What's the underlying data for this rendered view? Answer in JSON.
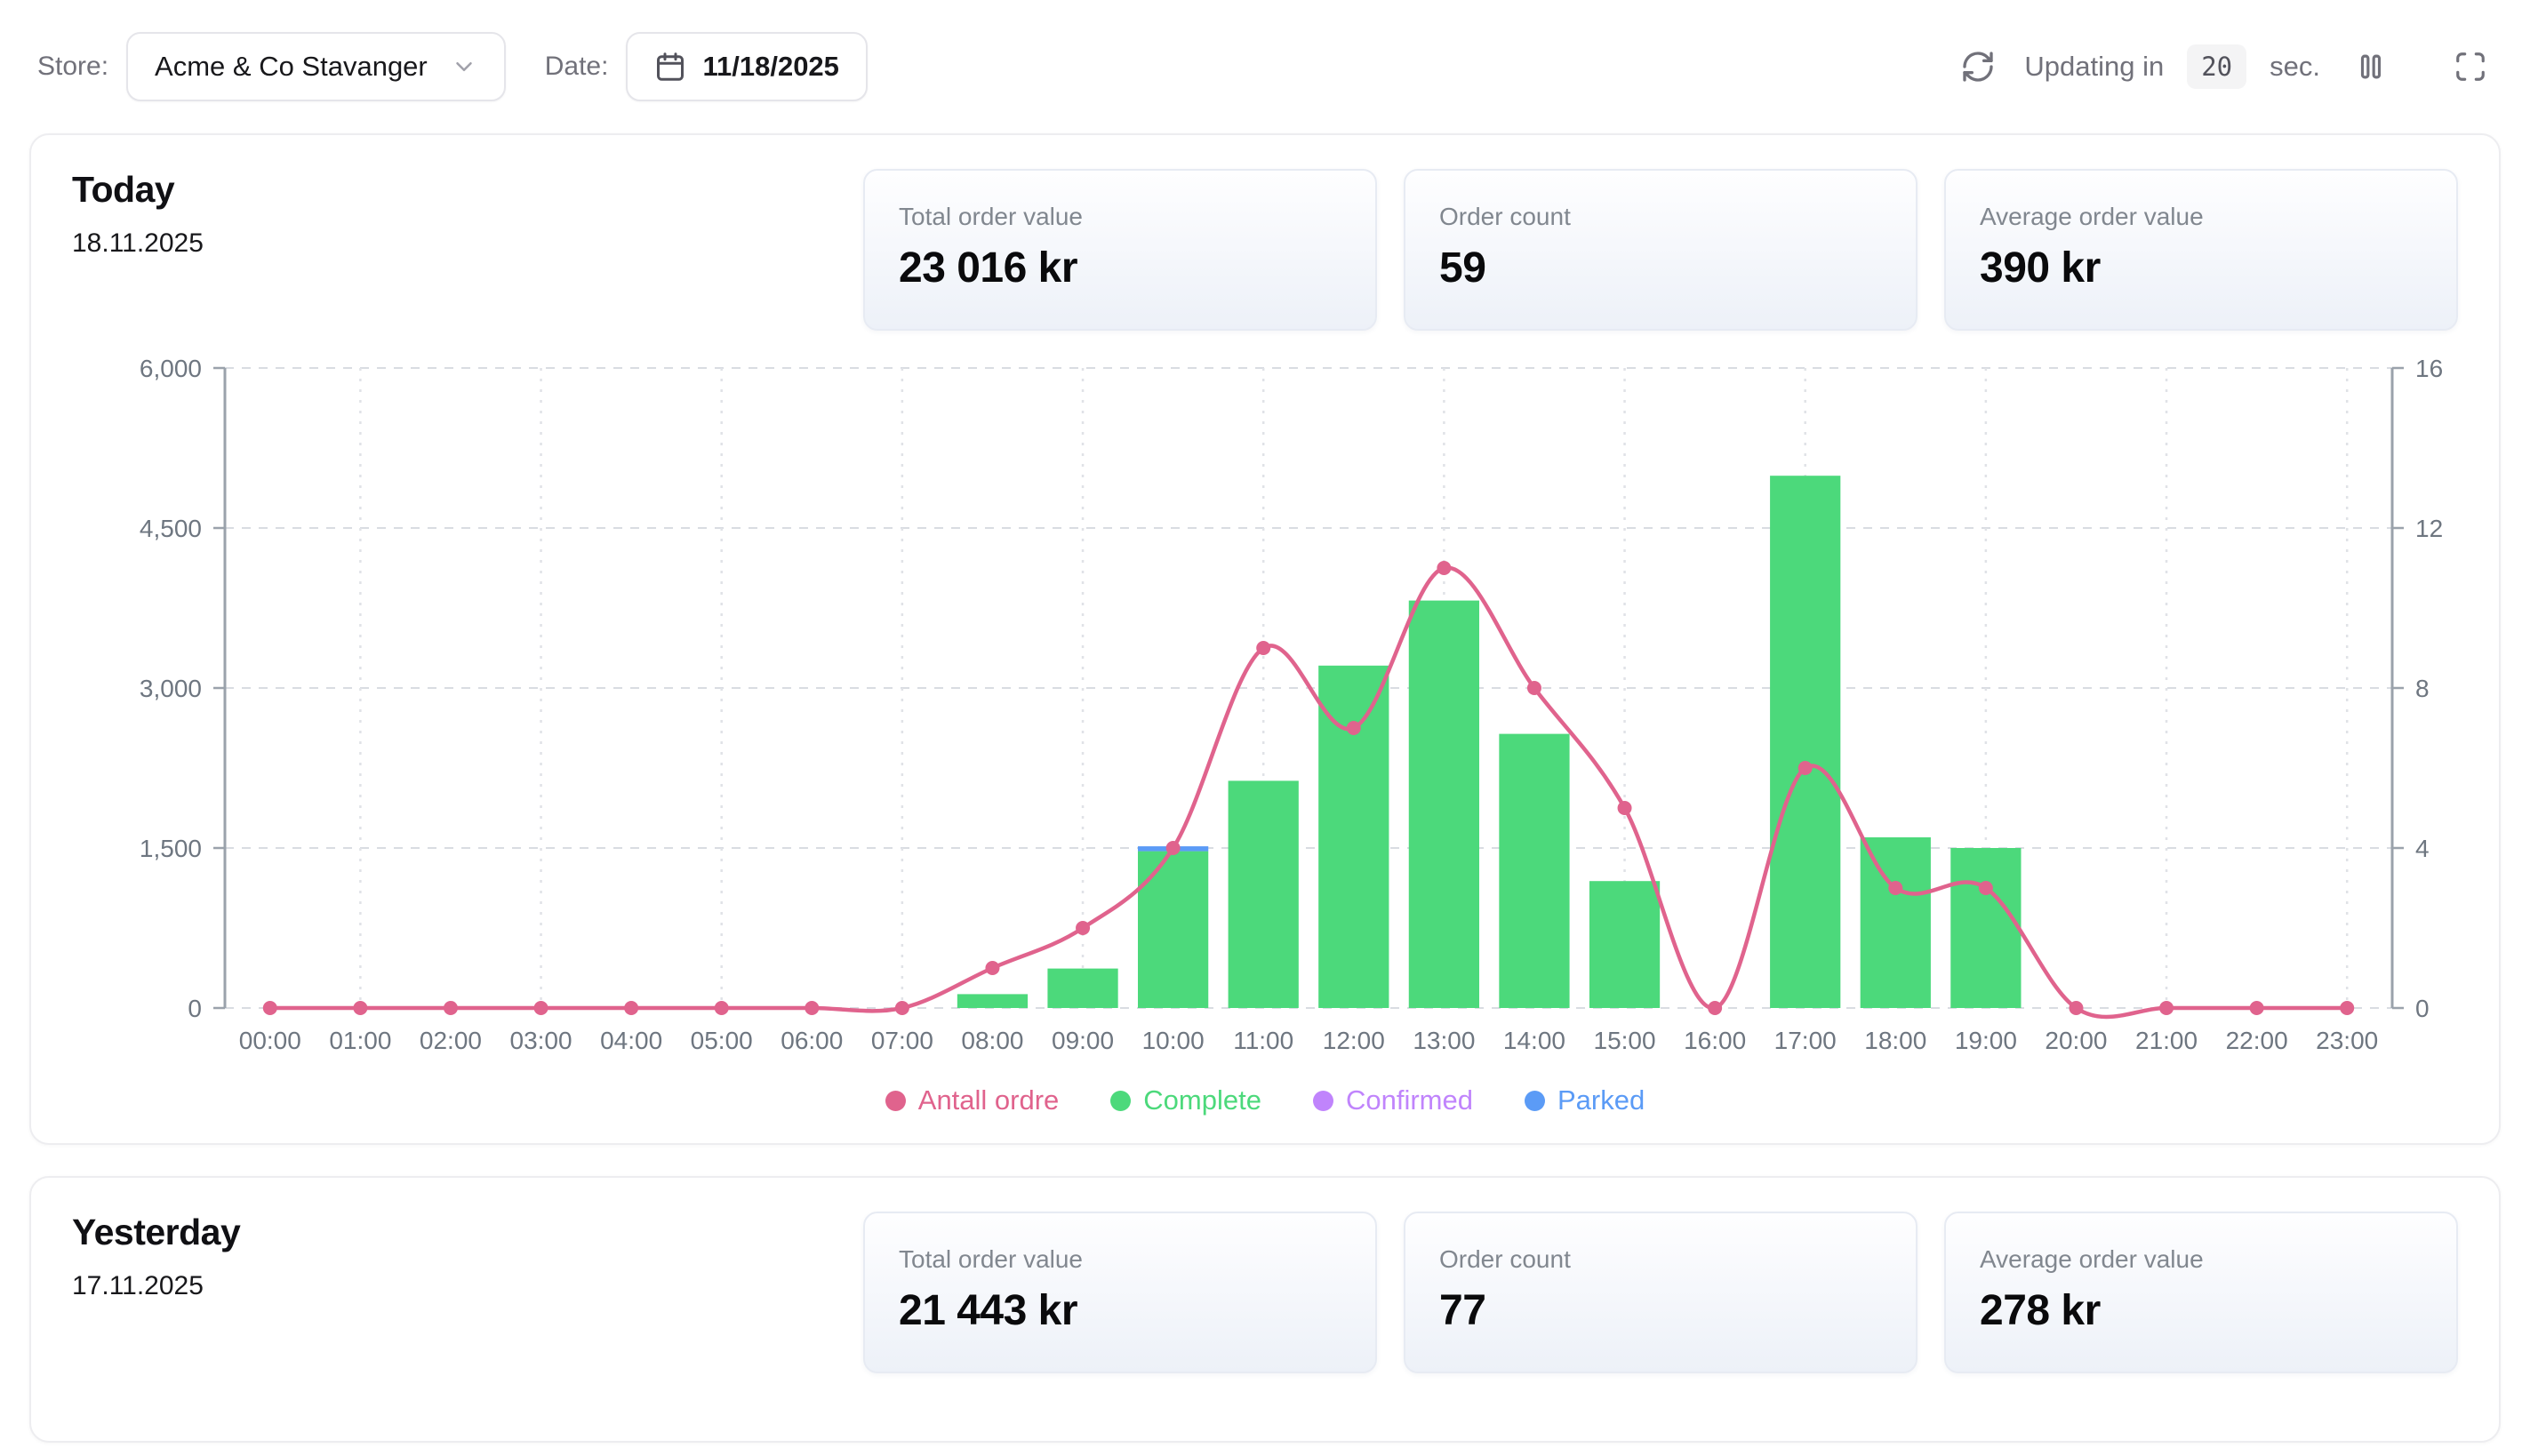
{
  "toolbar": {
    "store_label": "Store:",
    "store_value": "Acme & Co Stavanger",
    "date_label": "Date:",
    "date_value": "11/18/2025",
    "updating_prefix": "Updating in",
    "updating_seconds": "20",
    "updating_suffix": "sec."
  },
  "today": {
    "title": "Today",
    "date": "18.11.2025",
    "stats": [
      {
        "label": "Total order value",
        "value": "23 016 kr"
      },
      {
        "label": "Order count",
        "value": "59"
      },
      {
        "label": "Average order value",
        "value": "390 kr"
      }
    ]
  },
  "yesterday": {
    "title": "Yesterday",
    "date": "17.11.2025",
    "stats": [
      {
        "label": "Total order value",
        "value": "21 443 kr"
      },
      {
        "label": "Order count",
        "value": "77"
      },
      {
        "label": "Average order value",
        "value": "278 kr"
      }
    ]
  },
  "chart_data": {
    "type": "bar",
    "title": "",
    "categories": [
      "00:00",
      "01:00",
      "02:00",
      "03:00",
      "04:00",
      "05:00",
      "06:00",
      "07:00",
      "08:00",
      "09:00",
      "10:00",
      "11:00",
      "12:00",
      "13:00",
      "14:00",
      "15:00",
      "16:00",
      "17:00",
      "18:00",
      "19:00",
      "20:00",
      "21:00",
      "22:00",
      "23:00"
    ],
    "series": [
      {
        "name": "Antall ordre",
        "type": "line",
        "axis": "right",
        "color": "#e0638d",
        "values": [
          0,
          0,
          0,
          0,
          0,
          0,
          0,
          0,
          1,
          2,
          4,
          9,
          7,
          11,
          8,
          5,
          0,
          6,
          3,
          3,
          0,
          0,
          0,
          0
        ]
      },
      {
        "name": "Complete",
        "type": "bar",
        "axis": "left",
        "color": "#4cd97b",
        "values": [
          0,
          0,
          0,
          0,
          0,
          0,
          0,
          0,
          130,
          370,
          1470,
          2130,
          3210,
          3820,
          2570,
          1190,
          0,
          4990,
          1600,
          1500,
          0,
          0,
          0,
          0
        ]
      },
      {
        "name": "Confirmed",
        "type": "bar",
        "axis": "left",
        "color": "#c084fc",
        "values": [
          0,
          0,
          0,
          0,
          0,
          0,
          0,
          0,
          0,
          0,
          0,
          0,
          0,
          0,
          0,
          0,
          0,
          0,
          0,
          0,
          0,
          0,
          0,
          0
        ]
      },
      {
        "name": "Parked",
        "type": "bar",
        "axis": "left",
        "color": "#5b9bf6",
        "values": [
          0,
          0,
          0,
          0,
          0,
          0,
          0,
          0,
          0,
          0,
          46,
          0,
          0,
          0,
          0,
          0,
          0,
          0,
          0,
          0,
          0,
          0,
          0,
          0
        ]
      }
    ],
    "left_axis": {
      "ticks": [
        0,
        1500,
        3000,
        4500,
        6000
      ],
      "max": 6000
    },
    "right_axis": {
      "ticks": [
        0,
        4,
        8,
        12,
        16
      ],
      "max": 16
    },
    "grid": {
      "horizontal": "dashed",
      "vertical": "dotted-odd-hours"
    },
    "legend_position": "bottom",
    "xlabel": "",
    "ylabel": ""
  }
}
